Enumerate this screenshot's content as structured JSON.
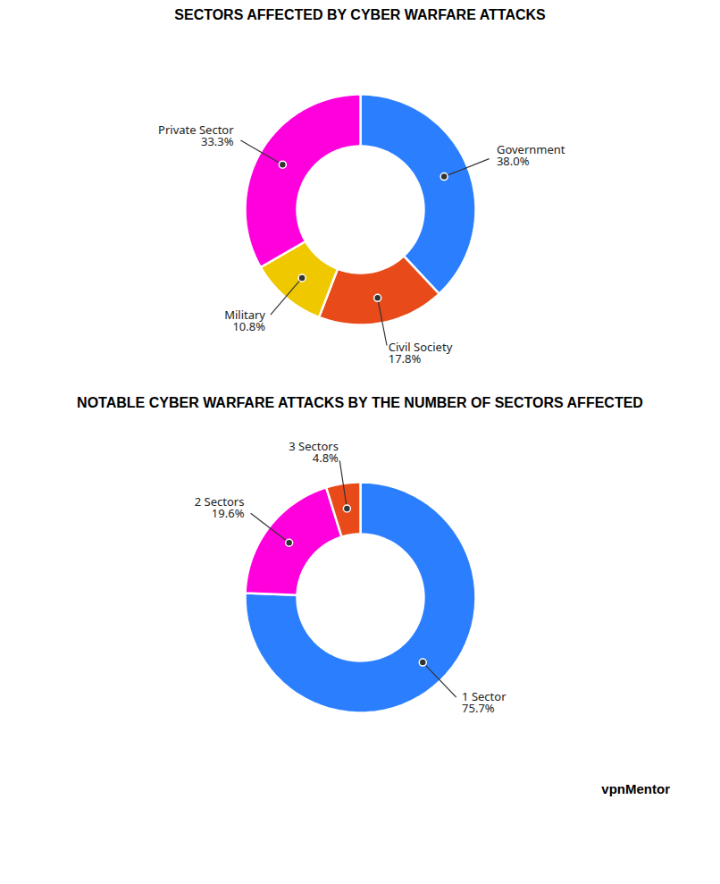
{
  "chart_data": [
    {
      "type": "pie",
      "title": "SECTORS AFFECTED BY CYBER WARFARE ATTACKS",
      "categories": [
        "Government",
        "Civil Society",
        "Military",
        "Private Sector"
      ],
      "values": [
        38.0,
        17.8,
        10.8,
        33.3
      ],
      "value_labels": [
        "38.0%",
        "17.8%",
        "10.8%",
        "33.3%"
      ],
      "colors": [
        "#2b7fff",
        "#e84a1a",
        "#f0c800",
        "#ff00dd"
      ],
      "data_labels": true
    },
    {
      "type": "pie",
      "title": "NOTABLE CYBER WARFARE ATTACKS BY THE NUMBER OF SECTORS AFFECTED",
      "categories": [
        "1 Sector",
        "2 Sectors",
        "3 Sectors"
      ],
      "values": [
        75.7,
        19.6,
        4.8
      ],
      "value_labels": [
        "75.7%",
        "19.6%",
        "4.8%"
      ],
      "colors": [
        "#2b7fff",
        "#ff00dd",
        "#e84a1a"
      ],
      "data_labels": true,
      "annotations": [
        {
          "text": "vpnMentor"
        }
      ]
    }
  ]
}
